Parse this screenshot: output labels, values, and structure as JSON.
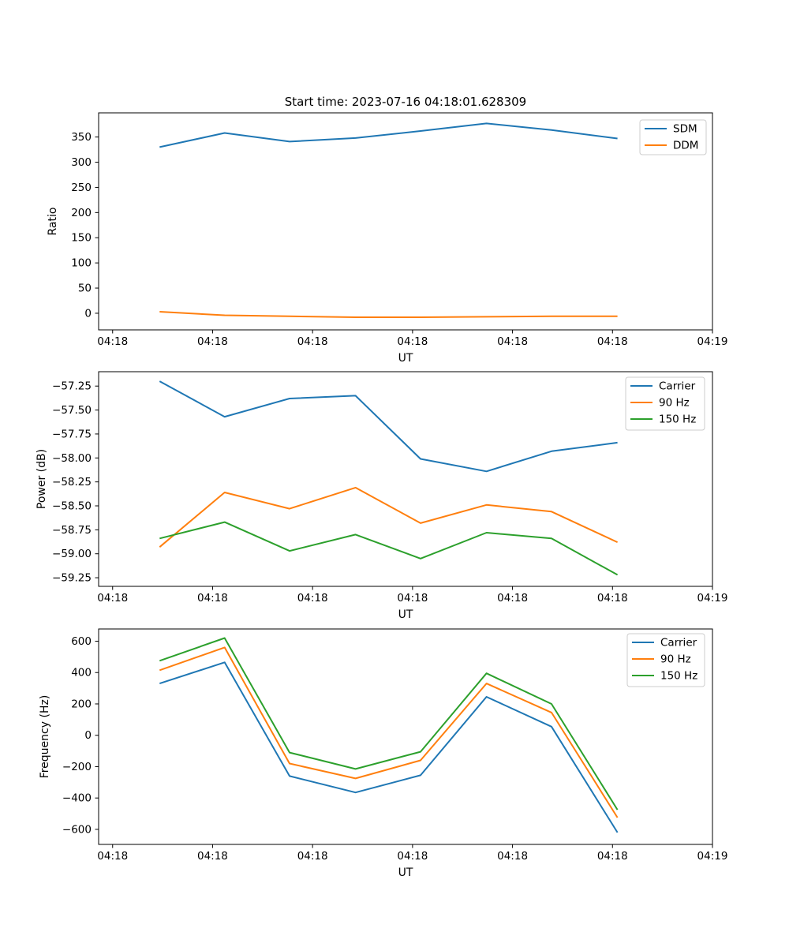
{
  "title": "Start time: 2023-07-16 04:18:01.628309",
  "chart_data": [
    {
      "id": "ratio",
      "type": "line",
      "xlabel": "UT",
      "ylabel": "Ratio",
      "grid": false,
      "legend_position": "upper right",
      "x_seconds_after_0418": [
        4.7,
        11.2,
        17.7,
        24.3,
        30.8,
        37.4,
        43.9,
        50.5
      ],
      "xlim_seconds": [
        -1.4,
        60
      ],
      "ylim": [
        -33,
        398
      ],
      "xticks": {
        "seconds": [
          0,
          10,
          20,
          30,
          40,
          50,
          60
        ],
        "labels": [
          "04:18",
          "04:18",
          "04:18",
          "04:18",
          "04:18",
          "04:18",
          "04:19"
        ]
      },
      "yticks": {
        "values": [
          0,
          50,
          100,
          150,
          200,
          250,
          300,
          350
        ],
        "labels": [
          "0",
          "50",
          "100",
          "150",
          "200",
          "250",
          "300",
          "350"
        ]
      },
      "series": [
        {
          "name": "SDM",
          "color": "#1f77b4",
          "values": [
            330,
            358,
            341,
            348,
            362,
            377,
            364,
            347
          ]
        },
        {
          "name": "DDM",
          "color": "#ff7f0e",
          "values": [
            3,
            -4,
            -6,
            -8,
            -8,
            -7,
            -6,
            -6
          ]
        }
      ]
    },
    {
      "id": "power",
      "type": "line",
      "xlabel": "UT",
      "ylabel": "Power (dB)",
      "grid": false,
      "legend_position": "upper right",
      "x_seconds_after_0418": [
        4.7,
        11.2,
        17.7,
        24.3,
        30.8,
        37.4,
        43.9,
        50.5
      ],
      "xlim_seconds": [
        -1.4,
        60
      ],
      "ylim": [
        -59.34,
        -57.1
      ],
      "xticks": {
        "seconds": [
          0,
          10,
          20,
          30,
          40,
          50,
          60
        ],
        "labels": [
          "04:18",
          "04:18",
          "04:18",
          "04:18",
          "04:18",
          "04:18",
          "04:19"
        ]
      },
      "yticks": {
        "values": [
          -59.25,
          -59.0,
          -58.75,
          -58.5,
          -58.25,
          -58.0,
          -57.75,
          -57.5,
          -57.25
        ],
        "labels": [
          "−59.25",
          "−59.00",
          "−58.75",
          "−58.50",
          "−58.25",
          "−58.00",
          "−57.75",
          "−57.50",
          "−57.25"
        ]
      },
      "series": [
        {
          "name": "Carrier",
          "color": "#1f77b4",
          "values": [
            -57.2,
            -57.57,
            -57.38,
            -57.35,
            -58.01,
            -58.14,
            -57.93,
            -57.84
          ]
        },
        {
          "name": "90 Hz",
          "color": "#ff7f0e",
          "values": [
            -58.93,
            -58.36,
            -58.53,
            -58.31,
            -58.68,
            -58.49,
            -58.56,
            -58.88
          ]
        },
        {
          "name": "150 Hz",
          "color": "#2ca02c",
          "values": [
            -58.84,
            -58.67,
            -58.97,
            -58.8,
            -59.05,
            -58.78,
            -58.84,
            -59.22
          ]
        }
      ]
    },
    {
      "id": "frequency",
      "type": "line",
      "xlabel": "UT",
      "ylabel": "Frequency (Hz)",
      "grid": false,
      "legend_position": "upper right",
      "x_seconds_after_0418": [
        4.7,
        11.2,
        17.7,
        24.3,
        30.8,
        37.4,
        43.9,
        50.5
      ],
      "xlim_seconds": [
        -1.4,
        60
      ],
      "ylim": [
        -696,
        678
      ],
      "xticks": {
        "seconds": [
          0,
          10,
          20,
          30,
          40,
          50,
          60
        ],
        "labels": [
          "04:18",
          "04:18",
          "04:18",
          "04:18",
          "04:18",
          "04:18",
          "04:19"
        ]
      },
      "yticks": {
        "values": [
          -600,
          -400,
          -200,
          0,
          200,
          400,
          600
        ],
        "labels": [
          "−600",
          "−400",
          "−200",
          "0",
          "200",
          "400",
          "600"
        ]
      },
      "series": [
        {
          "name": "Carrier",
          "color": "#1f77b4",
          "values": [
            330,
            465,
            -260,
            -365,
            -255,
            245,
            55,
            -620
          ]
        },
        {
          "name": "90 Hz",
          "color": "#ff7f0e",
          "values": [
            415,
            560,
            -180,
            -275,
            -160,
            330,
            145,
            -525
          ]
        },
        {
          "name": "150 Hz",
          "color": "#2ca02c",
          "values": [
            475,
            620,
            -110,
            -215,
            -105,
            395,
            200,
            -475
          ]
        }
      ]
    }
  ]
}
